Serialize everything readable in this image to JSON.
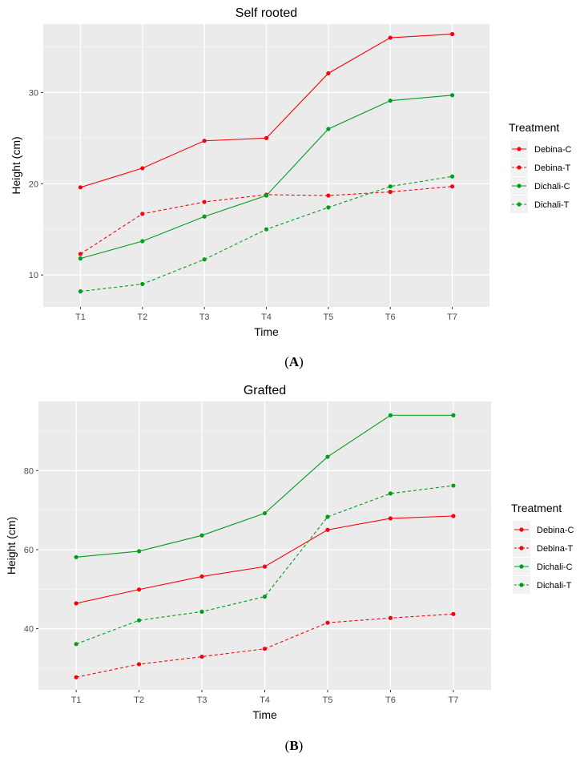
{
  "chart_data": [
    {
      "type": "line",
      "title": "Self rooted",
      "xlabel": "Time",
      "ylabel": "Height (cm)",
      "caption_letter": "A",
      "categories": [
        "T1",
        "T2",
        "T3",
        "T4",
        "T5",
        "T6",
        "T7"
      ],
      "ylim": [
        6.5,
        37.5
      ],
      "yticks": [
        10,
        20,
        30
      ],
      "grid": true,
      "legend": {
        "title": "Treatment",
        "placement": "right"
      },
      "series": [
        {
          "name": "Debina-C",
          "color": "#f8000d",
          "linetype": "solid",
          "values": [
            19.6,
            21.7,
            24.7,
            25.0,
            32.1,
            36.0,
            36.4
          ]
        },
        {
          "name": "Debina-T",
          "color": "#f8000d",
          "linetype": "dashed",
          "values": [
            12.3,
            16.7,
            18.0,
            18.8,
            18.7,
            19.1,
            19.7
          ]
        },
        {
          "name": "Dichali-C",
          "color": "#009e1a",
          "linetype": "solid",
          "values": [
            11.8,
            13.7,
            16.4,
            18.7,
            26.0,
            29.1,
            29.7
          ]
        },
        {
          "name": "Dichali-T",
          "color": "#009e1a",
          "linetype": "dashed",
          "values": [
            8.2,
            9.0,
            11.7,
            15.0,
            17.4,
            19.7,
            20.8
          ]
        }
      ]
    },
    {
      "type": "line",
      "title": "Grafted",
      "xlabel": "Time",
      "ylabel": "Height (cm)",
      "caption_letter": "B",
      "categories": [
        "T1",
        "T2",
        "T3",
        "T4",
        "T5",
        "T6",
        "T7"
      ],
      "ylim": [
        24.5,
        97.5
      ],
      "yticks": [
        40,
        60,
        80
      ],
      "grid": true,
      "legend": {
        "title": "Treatment",
        "placement": "right"
      },
      "series": [
        {
          "name": "Debina-C",
          "color": "#f8000d",
          "linetype": "solid",
          "values": [
            46.4,
            49.9,
            53.2,
            55.7,
            65.0,
            67.9,
            68.5
          ]
        },
        {
          "name": "Debina-T",
          "color": "#f8000d",
          "linetype": "dashed",
          "values": [
            27.7,
            31.0,
            32.9,
            34.9,
            41.5,
            42.7,
            43.7
          ]
        },
        {
          "name": "Dichali-C",
          "color": "#009e1a",
          "linetype": "solid",
          "values": [
            58.1,
            59.6,
            63.6,
            69.2,
            83.5,
            94.0,
            94.0
          ]
        },
        {
          "name": "Dichali-T",
          "color": "#009e1a",
          "linetype": "dashed",
          "values": [
            36.1,
            42.1,
            44.3,
            48.1,
            68.3,
            74.2,
            76.2
          ]
        }
      ]
    }
  ]
}
